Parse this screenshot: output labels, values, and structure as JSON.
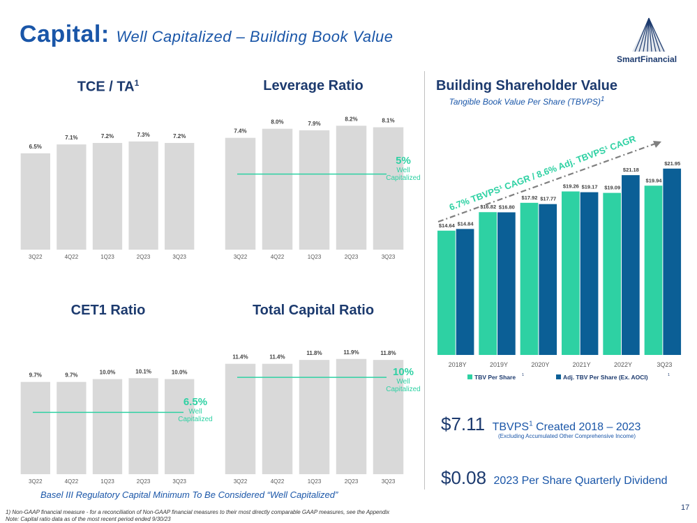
{
  "slide": {
    "title_main": "Capital:",
    "title_sub": "Well Capitalized – Building Book Value",
    "page_number": "17",
    "brand": "SmartFinancial",
    "colors": {
      "accent_teal": "#2ed1a3",
      "dark_blue": "#0b5f96",
      "bar_gray": "#d9d9d9",
      "title_blue": "#1a56a8",
      "navy": "#1c3a6e"
    }
  },
  "panels": {
    "tce": {
      "title": "TCE / TA",
      "sup": "1"
    },
    "leverage": {
      "title": "Leverage Ratio",
      "threshold_pct": "5%",
      "threshold_label": "Well Capitalized"
    },
    "cet1": {
      "title": "CET1 Ratio",
      "threshold_pct": "6.5%",
      "threshold_label": "Well Capitalized"
    },
    "total": {
      "title": "Total Capital Ratio",
      "threshold_pct": "10%",
      "threshold_label": "Well Capitalized"
    },
    "shareholder": {
      "title": "Building Shareholder Value",
      "subtitle": "Tangible Book Value Per Share (TBVPS)",
      "subtitle_sup": "1",
      "cagr_text": "6.7% TBVPS¹ CAGR / 8.6% Adj. TBVPS¹ CAGR"
    }
  },
  "chart_data": [
    {
      "type": "bar",
      "id": "tce",
      "title": "TCE / TA",
      "categories": [
        "3Q22",
        "4Q22",
        "1Q23",
        "2Q23",
        "3Q23"
      ],
      "values": [
        6.5,
        7.1,
        7.2,
        7.3,
        7.2
      ],
      "labels": [
        "6.5%",
        "7.1%",
        "7.2%",
        "7.3%",
        "7.2%"
      ],
      "ylim": [
        0,
        8
      ]
    },
    {
      "type": "bar",
      "id": "leverage",
      "title": "Leverage Ratio",
      "categories": [
        "3Q22",
        "4Q22",
        "1Q23",
        "2Q23",
        "3Q23"
      ],
      "values": [
        7.4,
        8.0,
        7.9,
        8.2,
        8.1
      ],
      "labels": [
        "7.4%",
        "8.0%",
        "7.9%",
        "8.2%",
        "8.1%"
      ],
      "threshold": 5,
      "ylim": [
        0,
        9
      ]
    },
    {
      "type": "bar",
      "id": "cet1",
      "title": "CET1 Ratio",
      "categories": [
        "3Q22",
        "4Q22",
        "1Q23",
        "2Q23",
        "3Q23"
      ],
      "values": [
        9.7,
        9.7,
        10.0,
        10.1,
        10.0
      ],
      "labels": [
        "9.7%",
        "9.7%",
        "10.0%",
        "10.1%",
        "10.0%"
      ],
      "threshold": 6.5,
      "ylim": [
        0,
        11
      ]
    },
    {
      "type": "bar",
      "id": "total",
      "title": "Total Capital Ratio",
      "categories": [
        "3Q22",
        "4Q22",
        "1Q23",
        "2Q23",
        "3Q23"
      ],
      "values": [
        11.4,
        11.4,
        11.8,
        11.9,
        11.8
      ],
      "labels": [
        "11.4%",
        "11.4%",
        "11.8%",
        "11.9%",
        "11.8%"
      ],
      "threshold": 10,
      "ylim": [
        0,
        12.1
      ]
    },
    {
      "type": "bar",
      "id": "tbvps",
      "title": "Building Shareholder Value",
      "categories": [
        "2018Y",
        "2019Y",
        "2020Y",
        "2021Y",
        "2022Y",
        "3Q23"
      ],
      "series": [
        {
          "name": "TBV Per Share",
          "sup": "1",
          "color": "#2ed1a3",
          "values": [
            14.64,
            16.82,
            17.92,
            19.26,
            19.09,
            19.94
          ],
          "labels": [
            "$14.64",
            "$16.82",
            "$17.92",
            "$19.26",
            "$19.09",
            "$19.94"
          ]
        },
        {
          "name": "Adj. TBV Per Share (Ex. AOCI)",
          "sup": "1",
          "color": "#0b5f96",
          "values": [
            14.84,
            16.8,
            17.77,
            19.17,
            21.18,
            21.95
          ],
          "labels": [
            "$14.84",
            "$16.80",
            "$17.77",
            "$19.17",
            "$21.18",
            "$21.95"
          ]
        }
      ],
      "ylim": [
        0,
        23
      ]
    }
  ],
  "stats": {
    "tbvps_created_value": "$7.11",
    "tbvps_created_label": "TBVPS",
    "tbvps_created_sup": "1",
    "tbvps_created_rest": "Created 2018 – 2023",
    "tbvps_created_note": "(Excluding Accumulated Other Comprehensive Income)",
    "dividend_value": "$0.08",
    "dividend_label": "2023 Per Share Quarterly Dividend"
  },
  "notes": {
    "basel": "Basel III Regulatory Capital Minimum To Be Considered “Well Capitalized”",
    "footnote1": "1) Non-GAAP financial measure - for a reconciliation of Non-GAAP financial measures to their most directly comparable GAAP measures, see the Appendix",
    "footnote2": "Note: Capital ratio data as of the most recent period ended 9/30/23"
  }
}
